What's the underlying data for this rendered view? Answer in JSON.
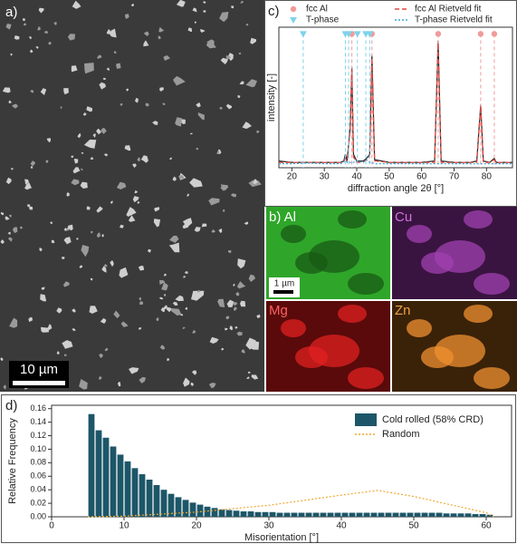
{
  "panels": {
    "a": {
      "label": "a)",
      "scale_bar": "10 µm"
    },
    "b": {
      "label": "b) Al",
      "maps": [
        "Cu",
        "Mg",
        "Zn"
      ],
      "scale_bar": "1 µm"
    },
    "c": {
      "label": "c)"
    },
    "d": {
      "label": "d)"
    }
  },
  "chart_data": [
    {
      "type": "line",
      "x_label": "diffraction angle 2θ [°]",
      "y_label": "intensity [-]",
      "xlim": [
        16,
        88
      ],
      "xticks": [
        20,
        30,
        40,
        50,
        60,
        70,
        80
      ],
      "ylim": [
        0,
        1.05
      ],
      "x": [
        16,
        20,
        25,
        30,
        35,
        36,
        36.5,
        37,
        38,
        38.5,
        39,
        40,
        42,
        43,
        44,
        44.7,
        45.5,
        50,
        55,
        60,
        64,
        65.1,
        66,
        70,
        75,
        77,
        78.2,
        79,
        81,
        82.4,
        83,
        88
      ],
      "series": [
        {
          "color": "#222222",
          "values": [
            0.05,
            0.04,
            0.04,
            0.04,
            0.04,
            0.05,
            0.1,
            0.05,
            0.3,
            0.75,
            0.1,
            0.05,
            0.05,
            0.07,
            0.1,
            0.84,
            0.06,
            0.04,
            0.04,
            0.04,
            0.05,
            0.95,
            0.05,
            0.04,
            0.04,
            0.05,
            0.47,
            0.05,
            0.04,
            0.07,
            0.04,
            0.04
          ]
        },
        {
          "name": "fcc Al",
          "type": "scatter",
          "marker": "circle",
          "color": "#f29a9a",
          "x": [
            38.5,
            44.7,
            65.1,
            78.2,
            82.4
          ],
          "values": [
            1,
            1,
            1,
            1,
            1
          ]
        },
        {
          "name": "fcc Al Rietveld fit",
          "color": "#e8453c",
          "style": "dashed",
          "values": [
            0.04,
            0.04,
            0.04,
            0.04,
            0.04,
            0.04,
            0.08,
            0.04,
            0.28,
            0.73,
            0.08,
            0.04,
            0.04,
            0.06,
            0.08,
            0.82,
            0.05,
            0.04,
            0.04,
            0.04,
            0.04,
            0.93,
            0.04,
            0.04,
            0.04,
            0.04,
            0.46,
            0.04,
            0.04,
            0.06,
            0.04,
            0.04
          ]
        },
        {
          "name": "T-phase",
          "type": "scatter",
          "marker": "triangle",
          "color": "#7fd3ea",
          "x": [
            23.5,
            36.5,
            37.5,
            40.2,
            42.8,
            44.0
          ],
          "values": [
            1,
            1,
            1,
            1,
            1,
            1
          ]
        },
        {
          "name": "T-phase Rietveld fit",
          "color": "#3fa9d9",
          "style": "dotted",
          "values": [
            0.03,
            0.03,
            0.035,
            0.03,
            0.03,
            0.04,
            0.07,
            0.04,
            0.04,
            0.04,
            0.04,
            0.05,
            0.04,
            0.06,
            0.04,
            0.04,
            0.03,
            0.03,
            0.03,
            0.03,
            0.03,
            0.03,
            0.03,
            0.03,
            0.03,
            0.03,
            0.03,
            0.03,
            0.03,
            0.03,
            0.03,
            0.03
          ]
        }
      ]
    },
    {
      "type": "histogram",
      "x_label": "Misorientation [°]",
      "y_label": "Relative Frequency",
      "xlim": [
        0,
        63.5
      ],
      "xticks": [
        0,
        10,
        20,
        30,
        40,
        50,
        60
      ],
      "ylim": [
        0,
        0.165
      ],
      "yticks": [
        {
          "value": 0,
          "label": "0.00"
        },
        0.02,
        0.04,
        0.06,
        0.08,
        {
          "value": 0.1,
          "label": "0.10"
        },
        0.12,
        0.14,
        0.16
      ],
      "bins": [
        5,
        6,
        7,
        8,
        9,
        10,
        11,
        12,
        13,
        14,
        15,
        16,
        17,
        18,
        19,
        20,
        21,
        22,
        23,
        24,
        25,
        26,
        27,
        28,
        29,
        30,
        31,
        32,
        33,
        34,
        35,
        36,
        37,
        38,
        39,
        40,
        41,
        42,
        43,
        44,
        45,
        46,
        47,
        48,
        49,
        50,
        51,
        52,
        53,
        54,
        55,
        56,
        57,
        58,
        59,
        60,
        61
      ],
      "series": [
        {
          "name": "Cold rolled (58% CRD)",
          "color": "#1d5668",
          "values": [
            0.152,
            0.128,
            0.117,
            0.104,
            0.092,
            0.082,
            0.072,
            0.063,
            0.055,
            0.047,
            0.04,
            0.034,
            0.029,
            0.025,
            0.021,
            0.018,
            0.015,
            0.013,
            0.011,
            0.01,
            0.009,
            0.008,
            0.008,
            0.007,
            0.007,
            0.007,
            0.006,
            0.006,
            0.006,
            0.006,
            0.006,
            0.006,
            0.006,
            0.006,
            0.006,
            0.006,
            0.006,
            0.006,
            0.006,
            0.006,
            0.006,
            0.006,
            0.006,
            0.006,
            0.006,
            0.006,
            0.006,
            0.006,
            0.006,
            0.005,
            0.005,
            0.005,
            0.005,
            0.004,
            0.004,
            0.003
          ]
        },
        {
          "name": "Random",
          "type": "line",
          "color": "#f0a830",
          "style": "dotted",
          "x": [
            5,
            10,
            20,
            30,
            40,
            45,
            50,
            55,
            60,
            61
          ],
          "values": [
            0,
            0.001,
            0.007,
            0.017,
            0.032,
            0.039,
            0.03,
            0.018,
            0.006,
            0
          ]
        }
      ]
    }
  ]
}
